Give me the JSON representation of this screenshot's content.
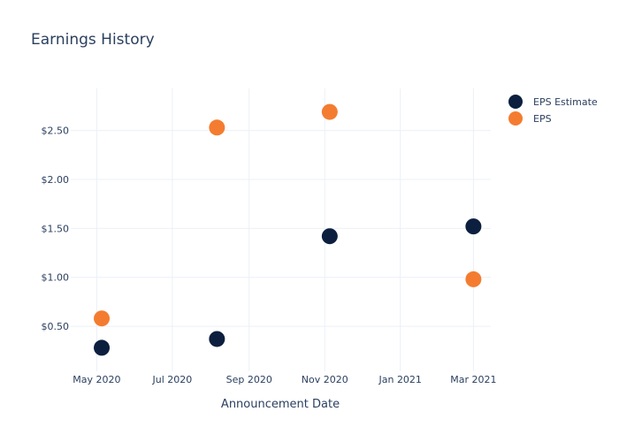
{
  "chart_data": {
    "type": "scatter",
    "title": "Earnings History",
    "xlabel": "Announcement Date",
    "ylabel": "",
    "x_ticks": [
      "May 2020",
      "Jul 2020",
      "Sep 2020",
      "Nov 2020",
      "Jan 2021",
      "Mar 2021"
    ],
    "y_ticks": [
      "$0.50",
      "$1.00",
      "$1.50",
      "$2.00",
      "$2.50"
    ],
    "x_tick_values": [
      "2020-05-01",
      "2020-07-01",
      "2020-09-01",
      "2020-11-01",
      "2021-01-01",
      "2021-03-01"
    ],
    "y_tick_values": [
      0.5,
      1.0,
      1.5,
      2.0,
      2.5
    ],
    "xlim": [
      "2020-04-10",
      "2021-03-15"
    ],
    "ylim": [
      0.04,
      2.93
    ],
    "grid": true,
    "legend_position": "top-right",
    "x": [
      "2020-05-05",
      "2020-08-06",
      "2020-11-05",
      "2021-03-01"
    ],
    "series": [
      {
        "name": "EPS Estimate",
        "color": "#0c1f3f",
        "values": [
          0.28,
          0.37,
          1.42,
          1.52
        ]
      },
      {
        "name": "EPS",
        "color": "#f47c30",
        "values": [
          0.58,
          2.53,
          2.69,
          0.98
        ]
      }
    ]
  }
}
